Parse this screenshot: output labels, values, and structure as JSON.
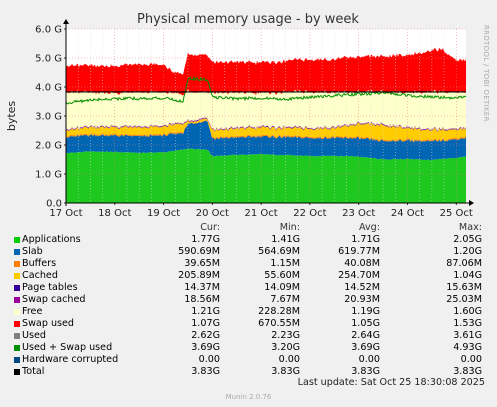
{
  "chart_data": {
    "type": "area",
    "title": "Physical memory usage - by week",
    "ylabel": "bytes",
    "side_label": "RRDTOOL / TOBI OETIKER",
    "ylim": [
      0,
      6
    ],
    "y_ticks": [
      {
        "value": 0,
        "label": "0.0"
      },
      {
        "value": 1,
        "label": "1.0 G"
      },
      {
        "value": 2,
        "label": "2.0 G"
      },
      {
        "value": 3,
        "label": "3.0 G"
      },
      {
        "value": 4,
        "label": "4.0 G"
      },
      {
        "value": 5,
        "label": "5.0 G"
      },
      {
        "value": 6,
        "label": "6.0 G"
      }
    ],
    "x_labels": [
      "17 Oct",
      "18 Oct",
      "19 Oct",
      "20 Oct",
      "21 Oct",
      "22 Oct",
      "23 Oct",
      "24 Oct",
      "25 Oct"
    ],
    "x_days": [
      17,
      18,
      19,
      20,
      21,
      22,
      23,
      24,
      25
    ],
    "x_range_days": [
      17,
      25.2
    ],
    "total_line_value": 3.83,
    "stack_series": [
      {
        "key": "apps",
        "color": "#1ec81e",
        "x": [
          17,
          17.5,
          18,
          18.5,
          19,
          19.4,
          19.5,
          19.9,
          20,
          20.5,
          21,
          21.5,
          22,
          22.5,
          23,
          23.5,
          24,
          24.5,
          25,
          25.2
        ],
        "values": [
          1.72,
          1.78,
          1.76,
          1.73,
          1.75,
          1.84,
          1.87,
          1.85,
          1.62,
          1.66,
          1.68,
          1.65,
          1.62,
          1.63,
          1.6,
          1.5,
          1.52,
          1.48,
          1.56,
          1.6
        ]
      },
      {
        "key": "slab",
        "color": "#0066b3",
        "x": [
          17,
          17.5,
          18,
          18.5,
          19,
          19.4,
          19.5,
          19.9,
          20,
          20.5,
          21,
          21.5,
          22,
          22.5,
          23,
          23.5,
          24,
          24.5,
          25,
          25.2
        ],
        "values": [
          0.55,
          0.56,
          0.56,
          0.57,
          0.58,
          0.58,
          0.85,
          1.0,
          0.6,
          0.6,
          0.61,
          0.62,
          0.62,
          0.62,
          0.63,
          0.63,
          0.64,
          0.64,
          0.64,
          0.64
        ]
      },
      {
        "key": "buffers",
        "color": "#ff8000",
        "x": [
          17,
          17.5,
          18,
          18.5,
          19,
          19.4,
          19.5,
          19.9,
          20,
          20.5,
          21,
          21.5,
          22,
          22.5,
          23,
          23.5,
          24,
          24.5,
          25,
          25.2
        ],
        "values": [
          0.04,
          0.04,
          0.04,
          0.04,
          0.04,
          0.04,
          0.02,
          0.02,
          0.04,
          0.04,
          0.04,
          0.04,
          0.04,
          0.04,
          0.04,
          0.04,
          0.04,
          0.04,
          0.04,
          0.04
        ]
      },
      {
        "key": "cached",
        "color": "#ffcc00",
        "x": [
          17,
          17.5,
          18,
          18.5,
          19,
          19.4,
          19.5,
          19.9,
          20,
          20.5,
          21,
          21.5,
          22,
          22.5,
          23,
          23.5,
          24,
          24.5,
          25,
          25.2
        ],
        "values": [
          0.2,
          0.23,
          0.25,
          0.26,
          0.27,
          0.28,
          0.06,
          0.06,
          0.25,
          0.26,
          0.27,
          0.27,
          0.28,
          0.3,
          0.45,
          0.5,
          0.4,
          0.35,
          0.3,
          0.28
        ]
      },
      {
        "key": "page_tables",
        "color": "#330099",
        "x": [
          17,
          25.2
        ],
        "values": [
          0.015,
          0.015
        ]
      },
      {
        "key": "swap_cached",
        "color": "#990099",
        "x": [
          17,
          25.2
        ],
        "values": [
          0.02,
          0.02
        ]
      },
      {
        "key": "free",
        "color": "#ffffcc",
        "x": [
          17,
          17.5,
          18,
          18.5,
          19,
          19.4,
          19.5,
          19.9,
          20,
          20.5,
          21,
          21.5,
          22,
          22.5,
          23,
          23.5,
          24,
          24.5,
          25,
          25.2
        ],
        "values": [
          1.28,
          1.18,
          1.14,
          1.19,
          1.15,
          0.97,
          1.01,
          0.88,
          1.26,
          1.21,
          1.16,
          1.21,
          1.24,
          1.2,
          1.07,
          1.12,
          1.19,
          1.28,
          1.25,
          1.23
        ]
      },
      {
        "key": "swap_used",
        "color": "#ff0000",
        "x": [
          17,
          17.1,
          17.2,
          18,
          18.1,
          19,
          19.2,
          19.4,
          19.5,
          19.9,
          20,
          20.4,
          20.5,
          21,
          21.5,
          21.6,
          22,
          22.1,
          22.5,
          22.7,
          23,
          23.1,
          23.5,
          23.8,
          24,
          24.7,
          25,
          25.2
        ],
        "values": [
          0.9,
          0.92,
          0.92,
          0.92,
          0.95,
          0.95,
          0.7,
          0.72,
          1.28,
          1.28,
          1.05,
          1.05,
          1.05,
          1.05,
          1.05,
          1.1,
          1.1,
          1.12,
          1.12,
          1.2,
          1.2,
          1.22,
          1.22,
          1.28,
          1.28,
          1.48,
          1.1,
          1.1
        ]
      }
    ],
    "used_swap_line": {
      "key": "used_swap",
      "color": "#008f00",
      "x": [
        17,
        17.5,
        18,
        18.5,
        19,
        19.4,
        19.5,
        19.9,
        20,
        20.5,
        21,
        21.5,
        22,
        22.5,
        23,
        23.5,
        24,
        24.5,
        25,
        25.2
      ],
      "values": [
        3.45,
        3.55,
        3.6,
        3.6,
        3.62,
        3.5,
        4.3,
        4.25,
        3.65,
        3.6,
        3.62,
        3.58,
        3.65,
        3.7,
        3.75,
        3.8,
        3.72,
        3.65,
        3.62,
        3.65
      ]
    },
    "legend": {
      "headers": {
        "cur": "Cur:",
        "min": "Min:",
        "avg": "Avg:",
        "max": "Max:"
      },
      "rows": [
        {
          "name": "Applications",
          "color": "#00cc00",
          "cur": "1.77G",
          "min": "1.41G",
          "avg": "1.71G",
          "max": "2.05G"
        },
        {
          "name": "Slab",
          "color": "#0066b3",
          "cur": "590.69M",
          "min": "564.69M",
          "avg": "619.77M",
          "max": "1.20G"
        },
        {
          "name": "Buffers",
          "color": "#ff8000",
          "cur": "39.65M",
          "min": "1.15M",
          "avg": "40.08M",
          "max": "87.06M"
        },
        {
          "name": "Cached",
          "color": "#ffcc00",
          "cur": "205.89M",
          "min": "55.60M",
          "avg": "254.70M",
          "max": "1.04G"
        },
        {
          "name": "Page tables",
          "color": "#330099",
          "cur": "14.37M",
          "min": "14.09M",
          "avg": "14.52M",
          "max": "15.63M"
        },
        {
          "name": "Swap cached",
          "color": "#990099",
          "cur": "18.56M",
          "min": "7.67M",
          "avg": "20.93M",
          "max": "25.03M"
        },
        {
          "name": "Free",
          "color": "#ffffcc",
          "cur": "1.21G",
          "min": "228.28M",
          "avg": "1.19G",
          "max": "1.60G"
        },
        {
          "name": "Swap used",
          "color": "#ff0000",
          "cur": "1.07G",
          "min": "670.55M",
          "avg": "1.05G",
          "max": "1.53G"
        },
        {
          "name": "Used",
          "color": "#808080",
          "cur": "2.62G",
          "min": "2.23G",
          "avg": "2.64G",
          "max": "3.61G"
        },
        {
          "name": "Used + Swap used",
          "color": "#008f00",
          "cur": "3.69G",
          "min": "3.20G",
          "avg": "3.69G",
          "max": "4.93G"
        },
        {
          "name": "Hardware corrupted",
          "color": "#00487d",
          "cur": "0.00",
          "min": "0.00",
          "avg": "0.00",
          "max": "0.00"
        },
        {
          "name": "Total",
          "color": "#000000",
          "cur": "3.83G",
          "min": "3.83G",
          "avg": "3.83G",
          "max": "3.83G"
        }
      ]
    }
  },
  "footer": {
    "last_update": "Last update: Sat Oct 25 18:30:08 2025",
    "munin": "Munin 2.0.76"
  }
}
